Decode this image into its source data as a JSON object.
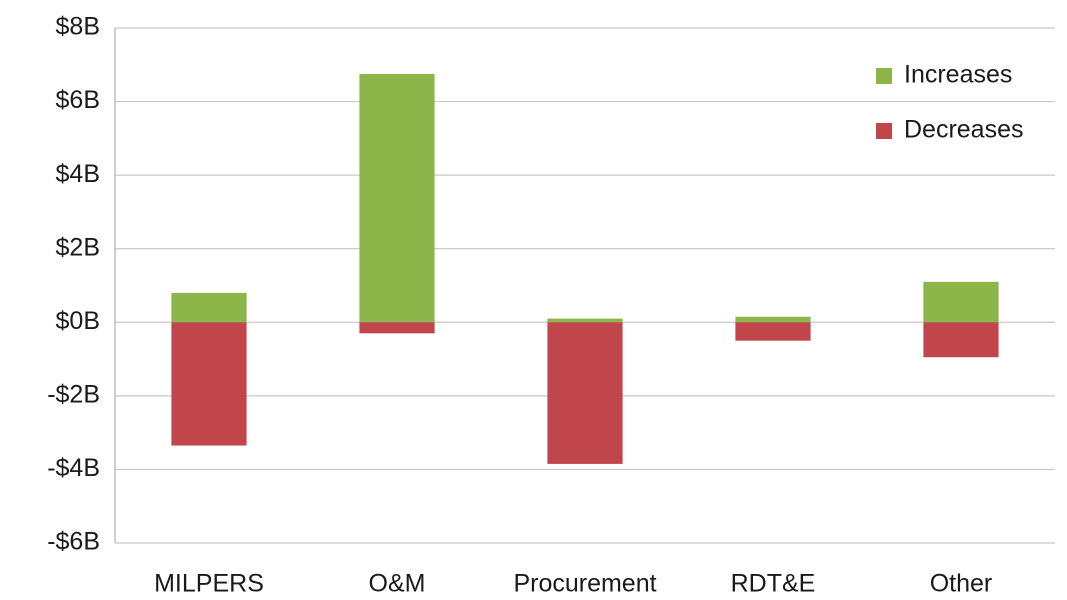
{
  "chart_data": {
    "type": "stacked_bar",
    "categories": [
      "MILPERS",
      "O&M",
      "Procurement",
      "RDT&E",
      "Other"
    ],
    "series": [
      {
        "name": "Increases",
        "color": "#8db64a",
        "values": [
          0.8,
          6.75,
          0.1,
          0.15,
          1.1
        ]
      },
      {
        "name": "Decreases",
        "color": "#c0464b",
        "values": [
          -3.35,
          -0.3,
          -3.85,
          -0.5,
          -0.95
        ]
      }
    ],
    "ylim": [
      -6,
      8
    ],
    "yticks": [
      {
        "value": -6,
        "label": "-$6B"
      },
      {
        "value": -4,
        "label": "-$4B"
      },
      {
        "value": -2,
        "label": "-$2B"
      },
      {
        "value": 0,
        "label": "$0B"
      },
      {
        "value": 2,
        "label": "$2B"
      },
      {
        "value": 4,
        "label": "$4B"
      },
      {
        "value": 6,
        "label": "$6B"
      },
      {
        "value": 8,
        "label": "$8B"
      }
    ],
    "grid": true,
    "legend": "upper right"
  }
}
